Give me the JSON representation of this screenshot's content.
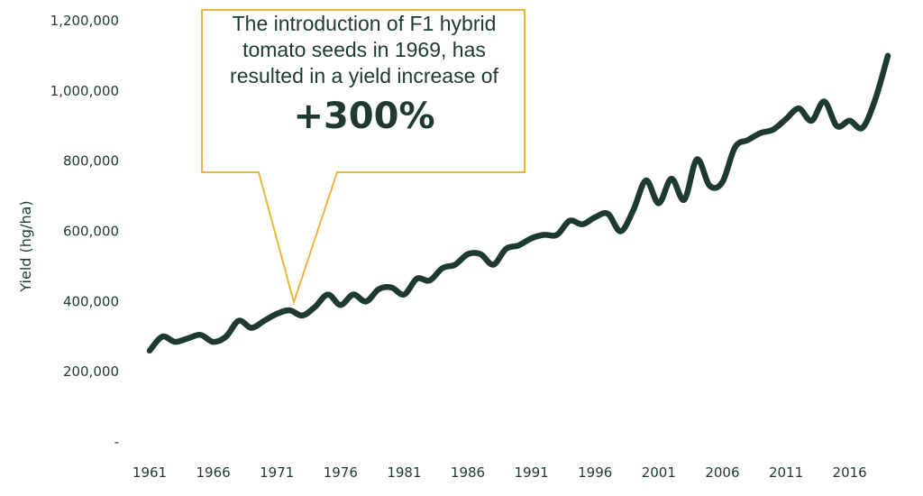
{
  "chart_data": {
    "type": "line",
    "ylabel": "Yield (hg/ha)",
    "xlabel": "",
    "ylim": [
      0,
      1200000
    ],
    "xlim": [
      1961,
      2019
    ],
    "y_ticks": [
      "-",
      "200,000",
      "400,000",
      "600,000",
      "800,000",
      "1,000,000",
      "1,200,000"
    ],
    "x_ticks": [
      "1961",
      "1966",
      "1971",
      "1976",
      "1981",
      "1986",
      "1991",
      "1996",
      "2001",
      "2006",
      "2011",
      "2016"
    ],
    "colors": {
      "line": "#1e3a2f",
      "callout_border": "#e8b73a",
      "text": "#1e3a2f"
    },
    "x": [
      1961,
      1962,
      1963,
      1964,
      1965,
      1966,
      1967,
      1968,
      1969,
      1970,
      1971,
      1972,
      1973,
      1974,
      1975,
      1976,
      1977,
      1978,
      1979,
      1980,
      1981,
      1982,
      1983,
      1984,
      1985,
      1986,
      1987,
      1988,
      1989,
      1990,
      1991,
      1992,
      1993,
      1994,
      1995,
      1996,
      1997,
      1998,
      1999,
      2000,
      2001,
      2002,
      2003,
      2004,
      2005,
      2006,
      2007,
      2008,
      2009,
      2010,
      2011,
      2012,
      2013,
      2014,
      2015,
      2016,
      2017,
      2018,
      2019
    ],
    "values": [
      260000,
      300000,
      285000,
      295000,
      305000,
      285000,
      300000,
      345000,
      325000,
      345000,
      365000,
      375000,
      360000,
      385000,
      420000,
      390000,
      420000,
      400000,
      435000,
      440000,
      420000,
      465000,
      460000,
      495000,
      505000,
      535000,
      535000,
      505000,
      550000,
      560000,
      580000,
      590000,
      590000,
      630000,
      620000,
      640000,
      650000,
      600000,
      660000,
      745000,
      680000,
      750000,
      690000,
      805000,
      730000,
      740000,
      840000,
      860000,
      880000,
      890000,
      920000,
      950000,
      915000,
      970000,
      900000,
      915000,
      895000,
      975000,
      1100000
    ]
  },
  "annotation": {
    "text": "The introduction of F1 hybrid tomato seeds in 1969, has resulted in a yield increase of",
    "highlight": "+300%",
    "pointer_year": 1972
  }
}
